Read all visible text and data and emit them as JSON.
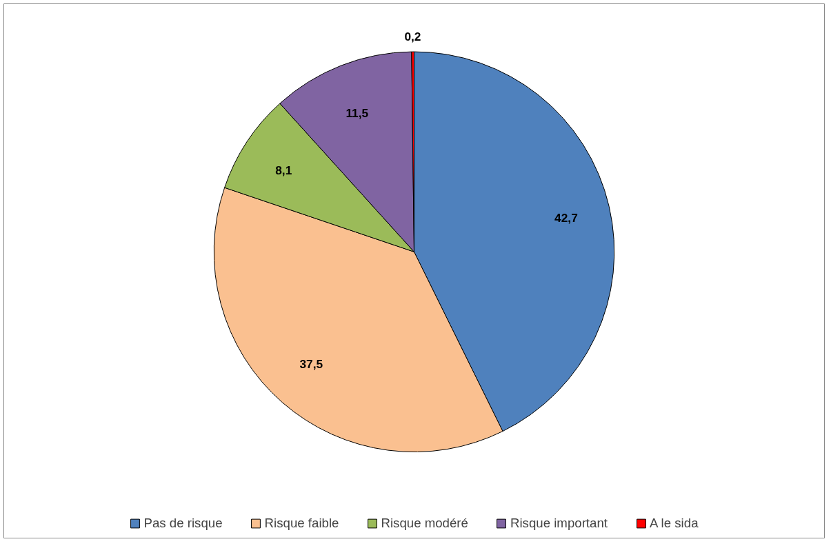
{
  "chart_data": {
    "type": "pie",
    "categories": [
      "Pas de risque",
      "Risque faible",
      "Risque modéré",
      "Risque important",
      "A le sida"
    ],
    "values": [
      42.7,
      37.5,
      8.1,
      11.5,
      0.2
    ],
    "colors": [
      "#4f81bd",
      "#fac090",
      "#9bbb59",
      "#8064a2",
      "#ff0000"
    ],
    "value_labels": [
      "42,7",
      "37,5",
      "8,1",
      "11,5",
      "0,2"
    ],
    "legend": "bottom"
  }
}
